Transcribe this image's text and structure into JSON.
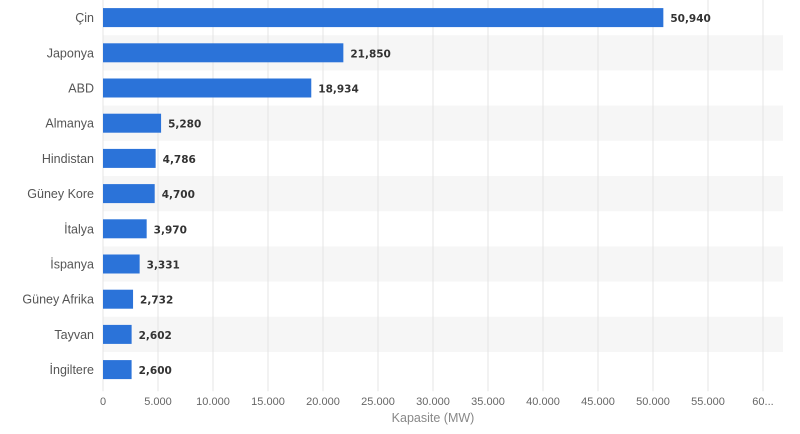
{
  "chart_data": {
    "type": "bar",
    "orientation": "horizontal",
    "title": "",
    "xlabel": "Kapasite (MW)",
    "ylabel": "",
    "categories": [
      "Çin",
      "Japonya",
      "ABD",
      "Almanya",
      "Hindistan",
      "Güney Kore",
      "İtalya",
      "İspanya",
      "Güney Afrika",
      "Tayvan",
      "İngiltere"
    ],
    "values": [
      50940,
      21850,
      18934,
      5280,
      4786,
      4700,
      3970,
      3331,
      2732,
      2602,
      2600
    ],
    "value_labels": [
      "50,940",
      "21,850",
      "18,934",
      "5,280",
      "4,786",
      "4,700",
      "3,970",
      "3,331",
      "2,732",
      "2,602",
      "2,600"
    ],
    "xlim": [
      0,
      60000
    ],
    "ticks": [
      0,
      5000,
      10000,
      15000,
      20000,
      25000,
      30000,
      35000,
      40000,
      45000,
      50000,
      55000,
      60000
    ],
    "tick_labels": [
      "0",
      "5.000",
      "10.000",
      "15.000",
      "20.000",
      "25.000",
      "30.000",
      "35.000",
      "40.000",
      "45.000",
      "50.000",
      "55.000",
      "60..."
    ],
    "grid": "vertical",
    "bar_color": "#2b73d9",
    "alternate_row_color": "#f6f6f6"
  }
}
